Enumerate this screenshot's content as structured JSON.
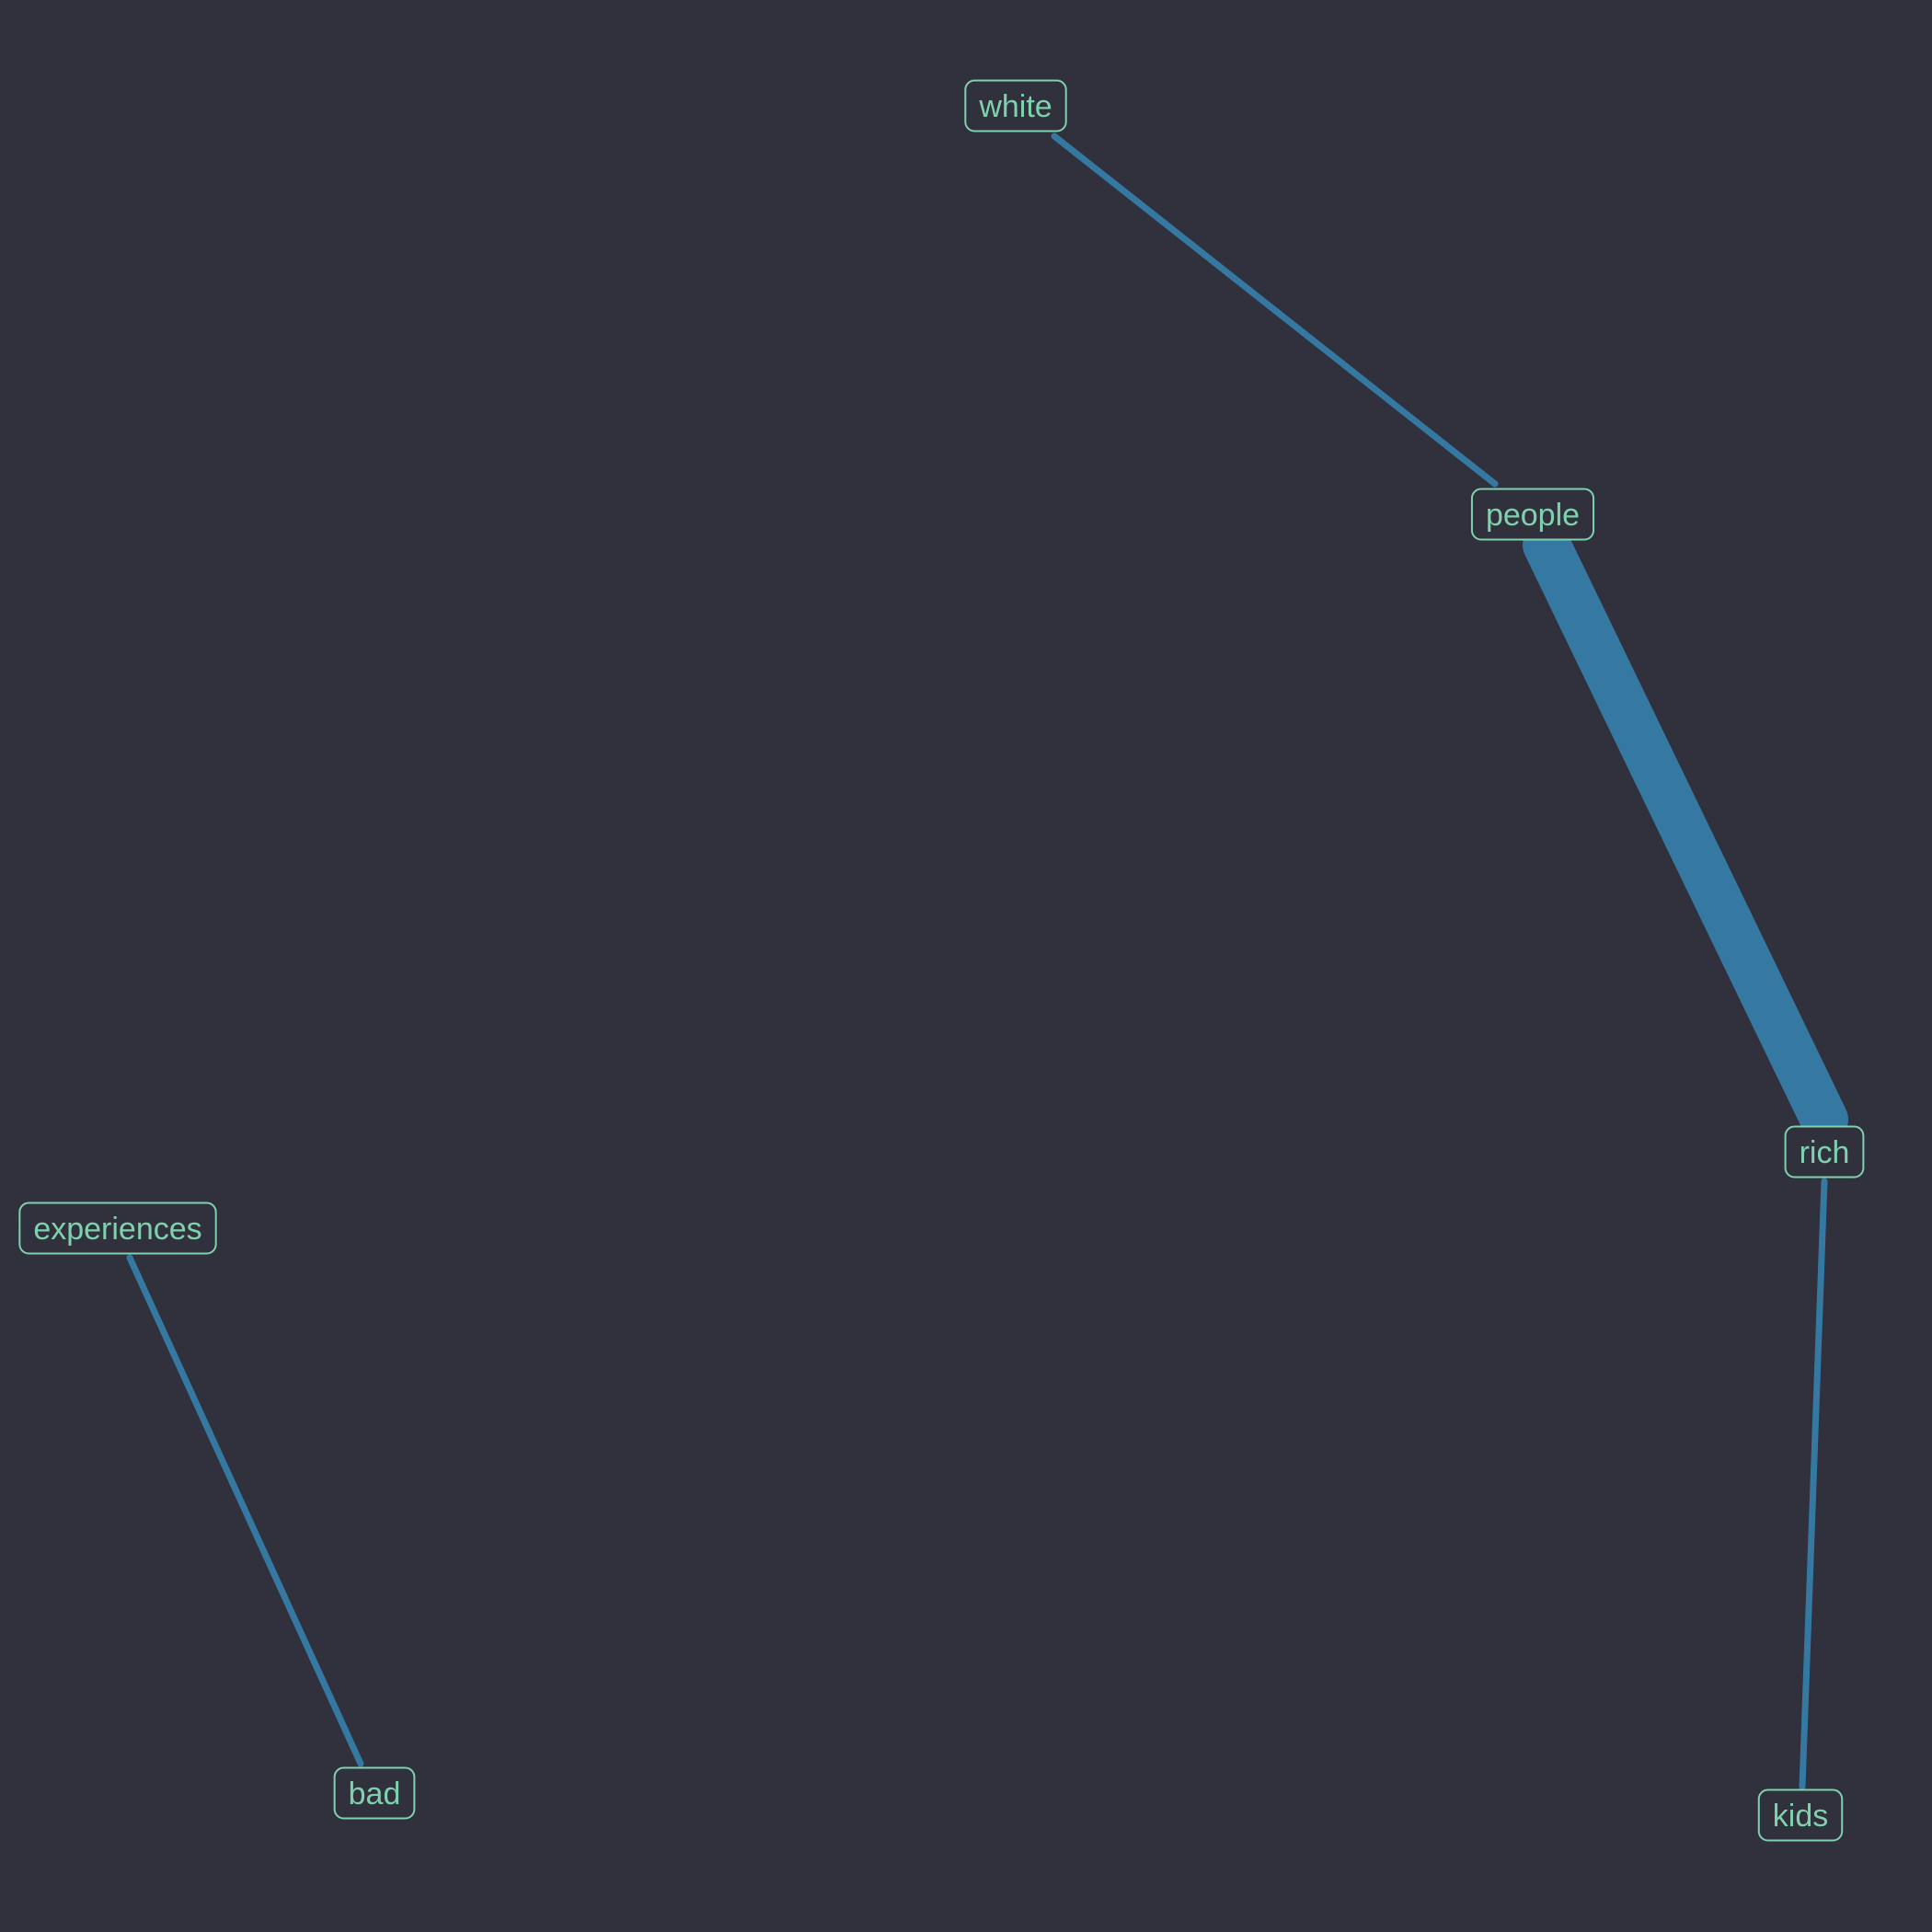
{
  "graph": {
    "colors": {
      "background": "#30313c",
      "edge": "#3579a2",
      "node_border": "#7fd1ae",
      "node_text": "#7fd1ae"
    },
    "nodes": [
      {
        "id": "white",
        "label": "white"
      },
      {
        "id": "people",
        "label": "people"
      },
      {
        "id": "rich",
        "label": "rich"
      },
      {
        "id": "kids",
        "label": "kids"
      },
      {
        "id": "experiences",
        "label": "experiences"
      },
      {
        "id": "bad",
        "label": "bad"
      }
    ],
    "edges": [
      {
        "source": "white",
        "target": "people",
        "weight": 1
      },
      {
        "source": "people",
        "target": "rich",
        "weight": 10
      },
      {
        "source": "rich",
        "target": "kids",
        "weight": 1
      },
      {
        "source": "experiences",
        "target": "bad",
        "weight": 1
      }
    ]
  }
}
